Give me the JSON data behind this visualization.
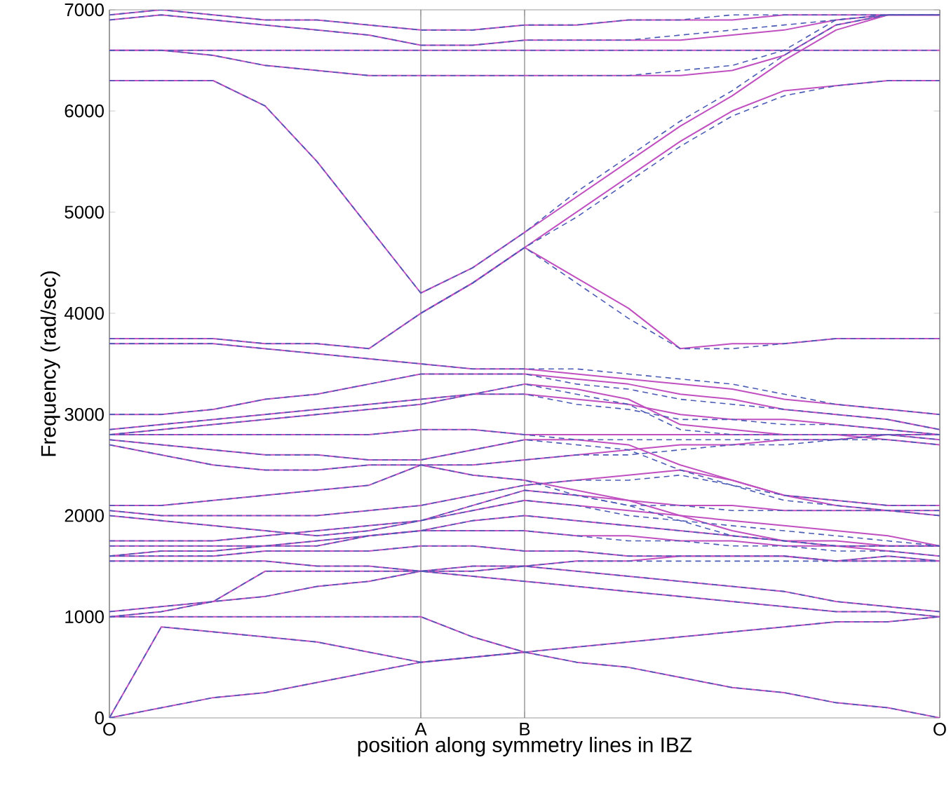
{
  "chart_data": {
    "type": "line",
    "xlabel": "position along symmetry lines in IBZ",
    "ylabel": "Frequency (rad/sec)",
    "categories": [
      "O",
      null,
      null,
      null,
      null,
      null,
      "A",
      null,
      "B",
      null,
      null,
      null,
      null,
      null,
      null,
      null,
      "O"
    ],
    "ylim": [
      0,
      7000
    ],
    "yticks": [
      0,
      1000,
      2000,
      3000,
      4000,
      5000,
      6000,
      7000
    ],
    "grid": "x",
    "marker": "none",
    "series": [
      {
        "color": "#c04fc0",
        "line_style": "solid",
        "values": [
          0,
          100,
          200,
          250,
          350,
          450,
          550,
          600,
          650,
          550,
          500,
          400,
          300,
          250,
          150,
          100,
          0
        ]
      },
      {
        "color": "#c04fc0",
        "line_style": "solid",
        "values": [
          0,
          900,
          850,
          800,
          750,
          650,
          550,
          600,
          650,
          700,
          750,
          800,
          850,
          900,
          950,
          950,
          1000
        ]
      },
      {
        "color": "#c04fc0",
        "line_style": "solid",
        "values": [
          1000,
          1000,
          1000,
          1000,
          1000,
          1000,
          1000,
          800,
          650,
          null,
          null,
          null,
          null,
          null,
          null,
          null,
          null
        ]
      },
      {
        "color": "#c04fc0",
        "line_style": "solid",
        "values": [
          1000,
          1050,
          1150,
          1450,
          1450,
          1450,
          1450,
          1400,
          1350,
          1300,
          1250,
          1200,
          1150,
          1100,
          1050,
          1050,
          1000
        ]
      },
      {
        "color": "#c04fc0",
        "line_style": "solid",
        "values": [
          1050,
          1100,
          1150,
          1200,
          1300,
          1350,
          1450,
          1450,
          1500,
          1450,
          1400,
          1350,
          1300,
          1250,
          1150,
          1100,
          1050
        ]
      },
      {
        "color": "#c04fc0",
        "line_style": "solid",
        "values": [
          1550,
          1550,
          1550,
          1550,
          1500,
          1500,
          1450,
          1500,
          1500,
          1550,
          1550,
          1600,
          1600,
          1600,
          1550,
          1550,
          1550
        ]
      },
      {
        "color": "#c04fc0",
        "line_style": "solid",
        "values": [
          1600,
          1600,
          1600,
          1650,
          1650,
          1650,
          1700,
          1700,
          1650,
          1650,
          1600,
          1600,
          1600,
          1600,
          1550,
          1600,
          1550
        ]
      },
      {
        "color": "#c04fc0",
        "line_style": "solid",
        "values": [
          1600,
          1650,
          1650,
          1700,
          1700,
          1800,
          1850,
          1850,
          1850,
          1800,
          1800,
          1750,
          1750,
          1700,
          1700,
          1650,
          1600
        ]
      },
      {
        "color": "#c04fc0",
        "line_style": "solid",
        "values": [
          1700,
          1700,
          1700,
          1700,
          1750,
          1800,
          1850,
          1950,
          2000,
          1950,
          1900,
          1850,
          1800,
          1750,
          1750,
          1700,
          1700
        ]
      },
      {
        "color": "#c04fc0",
        "line_style": "solid",
        "values": [
          1750,
          1750,
          1750,
          1800,
          1850,
          1900,
          1950,
          2050,
          2150,
          2100,
          2050,
          2000,
          1950,
          1900,
          1850,
          1800,
          1700
        ]
      },
      {
        "color": "#c04fc0",
        "line_style": "solid",
        "values": [
          2000,
          1950,
          1900,
          1850,
          1800,
          1850,
          1950,
          2100,
          2250,
          2200,
          2150,
          2000,
          1850,
          1750,
          1700,
          1700,
          1700
        ]
      },
      {
        "color": "#c04fc0",
        "line_style": "solid",
        "values": [
          2050,
          2000,
          2000,
          2000,
          2000,
          2050,
          2100,
          2200,
          2300,
          2350,
          2400,
          2450,
          2350,
          2200,
          2100,
          2050,
          2000
        ]
      },
      {
        "color": "#c04fc0",
        "line_style": "solid",
        "values": [
          2100,
          2100,
          2150,
          2200,
          2250,
          2300,
          2500,
          2500,
          2550,
          2600,
          2650,
          2700,
          2700,
          2750,
          2750,
          2800,
          2800
        ]
      },
      {
        "color": "#c04fc0",
        "line_style": "solid",
        "values": [
          2700,
          2600,
          2500,
          2450,
          2450,
          2500,
          2500,
          2400,
          2350,
          2250,
          2150,
          2100,
          2100,
          2050,
          2050,
          2050,
          2050
        ]
      },
      {
        "color": "#c04fc0",
        "line_style": "solid",
        "values": [
          2750,
          2700,
          2650,
          2600,
          2600,
          2550,
          2550,
          2650,
          2750,
          2750,
          2700,
          2500,
          2350,
          2200,
          2150,
          2100,
          2100
        ]
      },
      {
        "color": "#c04fc0",
        "line_style": "solid",
        "values": [
          2800,
          2800,
          2800,
          2800,
          2800,
          2800,
          2850,
          2850,
          2800,
          2800,
          2800,
          2800,
          2800,
          2800,
          2800,
          2750,
          2700
        ]
      },
      {
        "color": "#c04fc0",
        "line_style": "solid",
        "values": [
          2800,
          2850,
          2900,
          2950,
          3000,
          3050,
          3100,
          3200,
          3300,
          3250,
          3150,
          2900,
          2850,
          2800,
          2800,
          2800,
          2750
        ]
      },
      {
        "color": "#c04fc0",
        "line_style": "solid",
        "values": [
          2850,
          2900,
          2950,
          3000,
          3050,
          3100,
          3150,
          3200,
          3200,
          3150,
          3100,
          3000,
          2950,
          2950,
          2900,
          2850,
          2800
        ]
      },
      {
        "color": "#c04fc0",
        "line_style": "solid",
        "values": [
          3000,
          3000,
          3050,
          3150,
          3200,
          3300,
          3400,
          3400,
          3400,
          3350,
          3300,
          3200,
          3150,
          3050,
          3000,
          2950,
          2850
        ]
      },
      {
        "color": "#c04fc0",
        "line_style": "solid",
        "values": [
          3700,
          3700,
          3700,
          3650,
          3600,
          3550,
          3500,
          3450,
          3450,
          3400,
          3350,
          3300,
          3250,
          3150,
          3100,
          3050,
          3000
        ]
      },
      {
        "color": "#c04fc0",
        "line_style": "solid",
        "values": [
          3750,
          3750,
          3750,
          3700,
          3700,
          3650,
          4000,
          4300,
          4650,
          4350,
          4050,
          3650,
          3700,
          3700,
          3750,
          3750,
          3750
        ]
      },
      {
        "color": "#c04fc0",
        "line_style": "solid",
        "values": [
          null,
          null,
          null,
          null,
          null,
          null,
          4000,
          4300,
          4650,
          5000,
          5350,
          5700,
          6000,
          6200,
          6250,
          6300,
          6300
        ]
      },
      {
        "color": "#c04fc0",
        "line_style": "solid",
        "values": [
          6300,
          6300,
          6300,
          6050,
          5500,
          4850,
          4200,
          4450,
          4800,
          5150,
          5500,
          5850,
          6150,
          6500,
          6800,
          6950,
          6950
        ]
      },
      {
        "color": "#c04fc0",
        "line_style": "solid",
        "values": [
          6600,
          6600,
          6550,
          6450,
          6400,
          6350,
          6350,
          6350,
          6350,
          6350,
          6350,
          6350,
          6400,
          6550,
          6850,
          6950,
          6950
        ]
      },
      {
        "color": "#c04fc0",
        "line_style": "solid",
        "values": [
          6600,
          6600,
          6600,
          6600,
          6600,
          6600,
          6600,
          6600,
          6600,
          6600,
          6600,
          6600,
          6600,
          6600,
          6600,
          6600,
          6600
        ]
      },
      {
        "color": "#c04fc0",
        "line_style": "solid",
        "values": [
          6900,
          6950,
          6900,
          6850,
          6800,
          6750,
          6650,
          6650,
          6700,
          6700,
          6700,
          6700,
          6750,
          6800,
          6900,
          6950,
          6950
        ]
      },
      {
        "color": "#c04fc0",
        "line_style": "solid",
        "values": [
          6950,
          7000,
          6950,
          6900,
          6900,
          6850,
          6800,
          6800,
          6850,
          6850,
          6900,
          6900,
          6900,
          6950,
          6950,
          6950,
          6950
        ]
      },
      {
        "color": "#4a5bb5",
        "line_style": "dashed",
        "values": [
          0,
          100,
          200,
          250,
          350,
          450,
          550,
          600,
          650,
          550,
          500,
          400,
          300,
          250,
          150,
          100,
          0
        ]
      },
      {
        "color": "#4a5bb5",
        "line_style": "dashed",
        "values": [
          0,
          900,
          850,
          800,
          750,
          650,
          550,
          600,
          650,
          700,
          750,
          800,
          850,
          900,
          950,
          950,
          1000
        ]
      },
      {
        "color": "#4a5bb5",
        "line_style": "dashed",
        "values": [
          1000,
          1000,
          1000,
          1000,
          1000,
          1000,
          1000,
          800,
          650,
          null,
          null,
          null,
          null,
          null,
          null,
          null,
          null
        ]
      },
      {
        "color": "#4a5bb5",
        "line_style": "dashed",
        "values": [
          1000,
          1050,
          1150,
          1450,
          1450,
          1450,
          1450,
          1400,
          1350,
          1300,
          1250,
          1200,
          1150,
          1100,
          1050,
          1050,
          1000
        ]
      },
      {
        "color": "#4a5bb5",
        "line_style": "dashed",
        "values": [
          1050,
          1100,
          1150,
          1200,
          1300,
          1350,
          1450,
          1450,
          1500,
          1450,
          1400,
          1350,
          1300,
          1250,
          1150,
          1100,
          1050
        ]
      },
      {
        "color": "#4a5bb5",
        "line_style": "dashed",
        "values": [
          1550,
          1550,
          1550,
          1550,
          1500,
          1500,
          1450,
          1500,
          1500,
          1550,
          1550,
          1550,
          1550,
          1550,
          1550,
          1550,
          1550
        ]
      },
      {
        "color": "#4a5bb5",
        "line_style": "dashed",
        "values": [
          1600,
          1600,
          1600,
          1650,
          1650,
          1650,
          1700,
          1700,
          1650,
          1650,
          1600,
          1600,
          1600,
          1600,
          1550,
          1600,
          1550
        ]
      },
      {
        "color": "#4a5bb5",
        "line_style": "dashed",
        "values": [
          1600,
          1650,
          1650,
          1700,
          1700,
          1800,
          1850,
          1850,
          1850,
          1800,
          1750,
          1750,
          1700,
          1700,
          1650,
          1650,
          1600
        ]
      },
      {
        "color": "#4a5bb5",
        "line_style": "dashed",
        "values": [
          1700,
          1700,
          1700,
          1700,
          1750,
          1800,
          1850,
          1950,
          2000,
          1950,
          1900,
          1850,
          1800,
          1750,
          1700,
          1700,
          1700
        ]
      },
      {
        "color": "#4a5bb5",
        "line_style": "dashed",
        "values": [
          1750,
          1750,
          1750,
          1800,
          1850,
          1900,
          1950,
          2050,
          2150,
          2100,
          2000,
          1950,
          1900,
          1850,
          1800,
          1750,
          1700
        ]
      },
      {
        "color": "#4a5bb5",
        "line_style": "dashed",
        "values": [
          2000,
          1950,
          1900,
          1850,
          1800,
          1850,
          1950,
          2100,
          2250,
          2200,
          2100,
          1950,
          1800,
          1750,
          1700,
          1700,
          1700
        ]
      },
      {
        "color": "#4a5bb5",
        "line_style": "dashed",
        "values": [
          2050,
          2000,
          2000,
          2000,
          2000,
          2050,
          2100,
          2200,
          2300,
          2350,
          2350,
          2400,
          2300,
          2150,
          2100,
          2050,
          2000
        ]
      },
      {
        "color": "#4a5bb5",
        "line_style": "dashed",
        "values": [
          2100,
          2100,
          2150,
          2200,
          2250,
          2300,
          2500,
          2500,
          2550,
          2600,
          2600,
          2650,
          2700,
          2700,
          2750,
          2800,
          2800
        ]
      },
      {
        "color": "#4a5bb5",
        "line_style": "dashed",
        "values": [
          2700,
          2600,
          2500,
          2450,
          2450,
          2500,
          2500,
          2400,
          2350,
          2200,
          2100,
          2100,
          2050,
          2050,
          2050,
          2050,
          2050
        ]
      },
      {
        "color": "#4a5bb5",
        "line_style": "dashed",
        "values": [
          2750,
          2700,
          2650,
          2600,
          2600,
          2550,
          2550,
          2650,
          2750,
          2700,
          2650,
          2450,
          2300,
          2200,
          2150,
          2100,
          2100
        ]
      },
      {
        "color": "#4a5bb5",
        "line_style": "dashed",
        "values": [
          2800,
          2800,
          2800,
          2800,
          2800,
          2800,
          2850,
          2850,
          2800,
          2750,
          2750,
          2750,
          2750,
          2750,
          2750,
          2750,
          2700
        ]
      },
      {
        "color": "#4a5bb5",
        "line_style": "dashed",
        "values": [
          2800,
          2850,
          2900,
          2950,
          3000,
          3050,
          3100,
          3200,
          3300,
          3200,
          3100,
          2850,
          2800,
          2800,
          2800,
          2800,
          2750
        ]
      },
      {
        "color": "#4a5bb5",
        "line_style": "dashed",
        "values": [
          2850,
          2900,
          2950,
          3000,
          3050,
          3100,
          3150,
          3200,
          3200,
          3100,
          3050,
          2950,
          2950,
          2900,
          2900,
          2850,
          2800
        ]
      },
      {
        "color": "#4a5bb5",
        "line_style": "dashed",
        "values": [
          3000,
          3000,
          3050,
          3150,
          3200,
          3300,
          3400,
          3400,
          3400,
          3300,
          3250,
          3150,
          3100,
          3050,
          3000,
          2950,
          2850
        ]
      },
      {
        "color": "#4a5bb5",
        "line_style": "dashed",
        "values": [
          3700,
          3700,
          3700,
          3650,
          3600,
          3550,
          3500,
          3450,
          3450,
          3450,
          3400,
          3350,
          3300,
          3200,
          3100,
          3050,
          3000
        ]
      },
      {
        "color": "#4a5bb5",
        "line_style": "dashed",
        "values": [
          3750,
          3750,
          3750,
          3700,
          3700,
          3650,
          4000,
          4300,
          4650,
          4300,
          3950,
          3650,
          3650,
          3700,
          3750,
          3750,
          3750
        ]
      },
      {
        "color": "#4a5bb5",
        "line_style": "dashed",
        "values": [
          null,
          null,
          null,
          null,
          null,
          null,
          4000,
          4300,
          4650,
          4950,
          5300,
          5650,
          5950,
          6150,
          6250,
          6300,
          6300
        ]
      },
      {
        "color": "#4a5bb5",
        "line_style": "dashed",
        "values": [
          6300,
          6300,
          6300,
          6050,
          5500,
          4850,
          4200,
          4450,
          4800,
          5200,
          5550,
          5900,
          6200,
          6550,
          6850,
          6950,
          6950
        ]
      },
      {
        "color": "#4a5bb5",
        "line_style": "dashed",
        "values": [
          6600,
          6600,
          6550,
          6450,
          6400,
          6350,
          6350,
          6350,
          6350,
          6350,
          6350,
          6400,
          6450,
          6600,
          6900,
          6950,
          6950
        ]
      },
      {
        "color": "#4a5bb5",
        "line_style": "dashed",
        "values": [
          6600,
          6600,
          6600,
          6600,
          6600,
          6600,
          6600,
          6600,
          6600,
          6600,
          6600,
          6600,
          6600,
          6600,
          6600,
          6600,
          6600
        ]
      },
      {
        "color": "#4a5bb5",
        "line_style": "dashed",
        "values": [
          6900,
          6950,
          6900,
          6850,
          6800,
          6750,
          6650,
          6650,
          6700,
          6700,
          6700,
          6750,
          6800,
          6850,
          6900,
          6950,
          6950
        ]
      },
      {
        "color": "#4a5bb5",
        "line_style": "dashed",
        "values": [
          6950,
          7000,
          6950,
          6900,
          6900,
          6850,
          6800,
          6800,
          6850,
          6850,
          6900,
          6900,
          6950,
          6950,
          6950,
          6950,
          6950
        ]
      }
    ]
  }
}
